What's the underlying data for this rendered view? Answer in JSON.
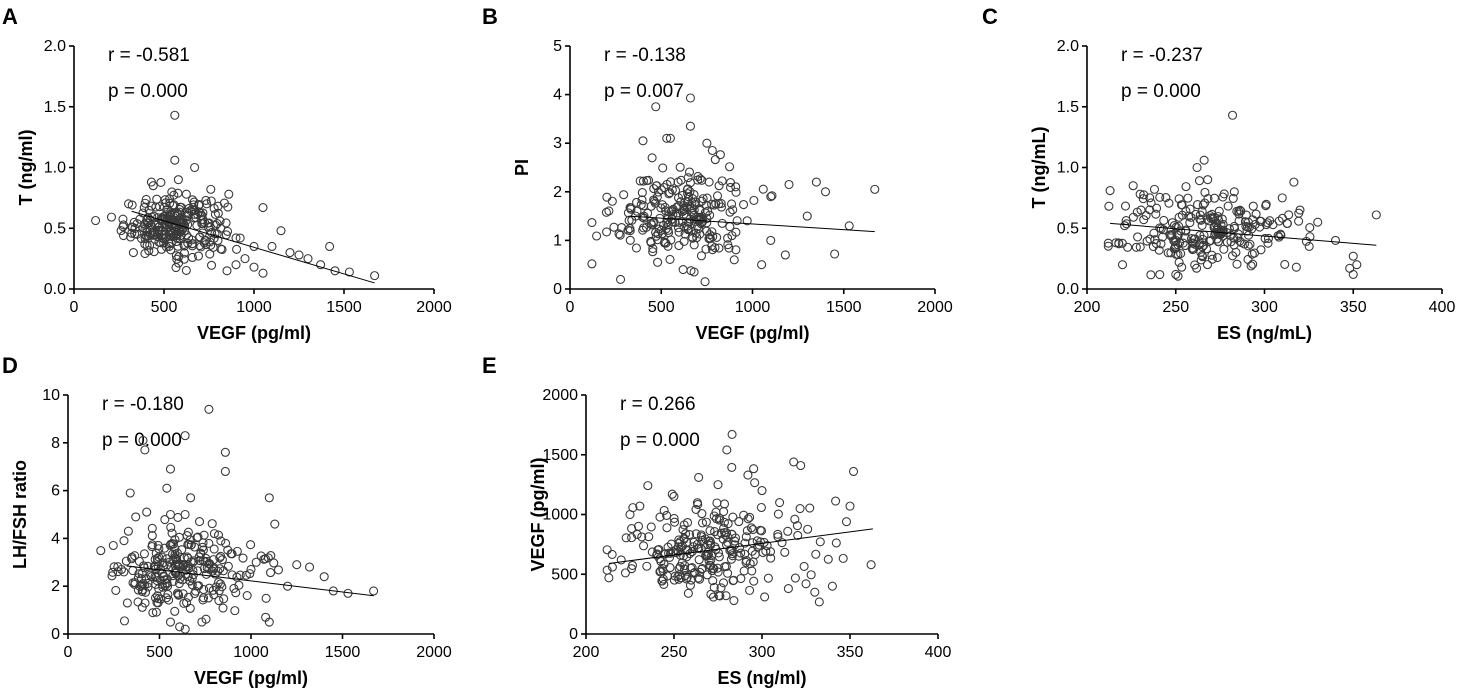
{
  "chart_data": [
    {
      "type": "scatter",
      "panel": "A",
      "xlabel": "VEGF (pg/ml)",
      "ylabel": "T (ng/ml)",
      "xticks": [
        0,
        500,
        1000,
        1500,
        2000
      ],
      "yticks": [
        "0.0",
        "0.5",
        "1.0",
        "1.5",
        "2.0"
      ],
      "xlim": [
        0,
        2000
      ],
      "ylim": [
        0,
        2.0
      ],
      "r_text": "r = -0.581",
      "p_text": "p = 0.000",
      "fit": [
        [
          320,
          0.64
        ],
        [
          1670,
          0.05
        ]
      ],
      "cluster": {
        "n": 260,
        "x_mean": 560,
        "x_sd": 140,
        "y_mean": 0.52,
        "y_sd": 0.12
      },
      "points": [
        [
          560,
          1.43
        ],
        [
          560,
          1.06
        ],
        [
          670,
          1.0
        ],
        [
          430,
          0.88
        ],
        [
          440,
          0.85
        ],
        [
          580,
          0.9
        ],
        [
          760,
          0.82
        ],
        [
          860,
          0.78
        ],
        [
          1050,
          0.67
        ],
        [
          1150,
          0.48
        ],
        [
          1100,
          0.35
        ],
        [
          1200,
          0.3
        ],
        [
          1250,
          0.28
        ],
        [
          1300,
          0.25
        ],
        [
          1370,
          0.2
        ],
        [
          1420,
          0.35
        ],
        [
          1450,
          0.15
        ],
        [
          1530,
          0.14
        ],
        [
          1670,
          0.11
        ],
        [
          900,
          0.2
        ],
        [
          950,
          0.25
        ],
        [
          1000,
          0.18
        ],
        [
          1050,
          0.13
        ],
        [
          850,
          0.15
        ],
        [
          800,
          0.4
        ],
        [
          900,
          0.42
        ],
        [
          1000,
          0.35
        ],
        [
          330,
          0.3
        ],
        [
          350,
          0.45
        ]
      ]
    },
    {
      "type": "scatter",
      "panel": "B",
      "xlabel": "VEGF (pg/ml)",
      "ylabel": "PI",
      "xticks": [
        0,
        500,
        1000,
        1500,
        2000
      ],
      "yticks": [
        "0",
        "1",
        "2",
        "3",
        "4",
        "5"
      ],
      "xlim": [
        0,
        2000
      ],
      "ylim": [
        0,
        5
      ],
      "r_text": "r = -0.138",
      "p_text": "p = 0.007",
      "fit": [
        [
          320,
          1.5
        ],
        [
          1670,
          1.18
        ]
      ],
      "cluster": {
        "n": 240,
        "x_mean": 600,
        "x_sd": 180,
        "y_mean": 1.55,
        "y_sd": 0.45
      },
      "points": [
        [
          470,
          3.75
        ],
        [
          660,
          3.93
        ],
        [
          660,
          3.35
        ],
        [
          400,
          3.05
        ],
        [
          530,
          3.1
        ],
        [
          550,
          3.1
        ],
        [
          750,
          3.0
        ],
        [
          780,
          2.85
        ],
        [
          450,
          2.7
        ],
        [
          1350,
          2.2
        ],
        [
          1400,
          2.0
        ],
        [
          1670,
          2.05
        ],
        [
          1530,
          1.3
        ],
        [
          1450,
          0.72
        ],
        [
          1200,
          2.15
        ],
        [
          1100,
          1.9
        ],
        [
          1100,
          1.0
        ],
        [
          1050,
          0.5
        ],
        [
          1180,
          0.7
        ],
        [
          1300,
          1.5
        ],
        [
          740,
          0.15
        ],
        [
          620,
          0.4
        ],
        [
          680,
          0.35
        ],
        [
          480,
          0.55
        ],
        [
          900,
          0.6
        ],
        [
          330,
          1.2
        ],
        [
          360,
          1.5
        ]
      ]
    },
    {
      "type": "scatter",
      "panel": "C",
      "xlabel": "ES (ng/mL)",
      "ylabel": "T (ng/mL)",
      "xticks": [
        200,
        250,
        300,
        350,
        400
      ],
      "yticks": [
        "0.0",
        "0.5",
        "1.0",
        "1.5",
        "2.0"
      ],
      "xlim": [
        200,
        400
      ],
      "ylim": [
        0,
        2.0
      ],
      "r_text": "r = -0.237",
      "p_text": "p = 0.000",
      "fit": [
        [
          213,
          0.54
        ],
        [
          363,
          0.36
        ]
      ],
      "cluster": {
        "n": 250,
        "x_mean": 268,
        "x_sd": 26,
        "y_mean": 0.47,
        "y_sd": 0.16
      },
      "points": [
        [
          282,
          1.43
        ],
        [
          266,
          1.06
        ],
        [
          262,
          1.0
        ],
        [
          268,
          0.9
        ],
        [
          213,
          0.81
        ],
        [
          226,
          0.85
        ],
        [
          238,
          0.82
        ],
        [
          283,
          0.8
        ],
        [
          363,
          0.61
        ],
        [
          350,
          0.27
        ],
        [
          352,
          0.2
        ],
        [
          350,
          0.12
        ],
        [
          348,
          0.17
        ],
        [
          220,
          0.2
        ],
        [
          250,
          0.12
        ],
        [
          340,
          0.4
        ],
        [
          330,
          0.55
        ],
        [
          320,
          0.65
        ],
        [
          310,
          0.75
        ]
      ]
    },
    {
      "type": "scatter",
      "panel": "D",
      "xlabel": "VEGF (pg/ml)",
      "ylabel": "LH/FSH ratio",
      "xticks": [
        0,
        500,
        1000,
        1500,
        2000
      ],
      "yticks": [
        "0",
        "2",
        "4",
        "6",
        "8",
        "10"
      ],
      "xlim": [
        0,
        2000
      ],
      "ylim": [
        0,
        10
      ],
      "r_text": "r = -0.180",
      "p_text": "p = 0.000",
      "fit": [
        [
          320,
          2.85
        ],
        [
          1670,
          1.6
        ]
      ],
      "cluster": {
        "n": 260,
        "x_mean": 620,
        "x_sd": 190,
        "y_mean": 2.6,
        "y_sd": 0.9
      },
      "points": [
        [
          770,
          9.4
        ],
        [
          410,
          8.1
        ],
        [
          420,
          7.7
        ],
        [
          640,
          8.3
        ],
        [
          860,
          7.6
        ],
        [
          860,
          6.8
        ],
        [
          560,
          6.9
        ],
        [
          340,
          5.9
        ],
        [
          540,
          6.1
        ],
        [
          670,
          5.7
        ],
        [
          1100,
          5.7
        ],
        [
          1130,
          4.6
        ],
        [
          560,
          5.0
        ],
        [
          640,
          5.0
        ],
        [
          800,
          4.2
        ],
        [
          330,
          4.3
        ],
        [
          370,
          4.9
        ],
        [
          430,
          5.1
        ],
        [
          1250,
          2.9
        ],
        [
          1320,
          2.8
        ],
        [
          1400,
          2.4
        ],
        [
          1450,
          1.8
        ],
        [
          1530,
          1.7
        ],
        [
          1670,
          1.8
        ],
        [
          1100,
          0.5
        ],
        [
          1080,
          0.7
        ],
        [
          610,
          0.3
        ],
        [
          560,
          0.5
        ],
        [
          1200,
          2.0
        ],
        [
          1000,
          2.7
        ]
      ]
    },
    {
      "type": "scatter",
      "panel": "E",
      "xlabel": "ES (ng/ml)",
      "ylabel": "VEGF (pg/ml)",
      "xticks": [
        200,
        250,
        300,
        350,
        400
      ],
      "yticks": [
        "0",
        "500",
        "1000",
        "1500",
        "2000"
      ],
      "xlim": [
        200,
        400
      ],
      "ylim": [
        0,
        2000
      ],
      "r_text": "r = 0.266",
      "p_text": "p = 0.000",
      "fit": [
        [
          213,
          590
        ],
        [
          363,
          880
        ]
      ],
      "cluster": {
        "n": 260,
        "x_mean": 270,
        "x_sd": 26,
        "y_mean": 720,
        "y_sd": 210
      },
      "points": [
        [
          283,
          1670
        ],
        [
          280,
          1540
        ],
        [
          318,
          1440
        ],
        [
          322,
          1410
        ],
        [
          352,
          1360
        ],
        [
          292,
          1330
        ],
        [
          264,
          1310
        ],
        [
          350,
          1070
        ],
        [
          348,
          940
        ],
        [
          362,
          580
        ],
        [
          213,
          470
        ],
        [
          215,
          560
        ],
        [
          220,
          620
        ],
        [
          225,
          1000
        ],
        [
          249,
          1170
        ],
        [
          330,
          350
        ],
        [
          340,
          400
        ],
        [
          325,
          420
        ],
        [
          315,
          380
        ],
        [
          300,
          1200
        ],
        [
          310,
          1100
        ],
        [
          275,
          1250
        ]
      ]
    }
  ]
}
